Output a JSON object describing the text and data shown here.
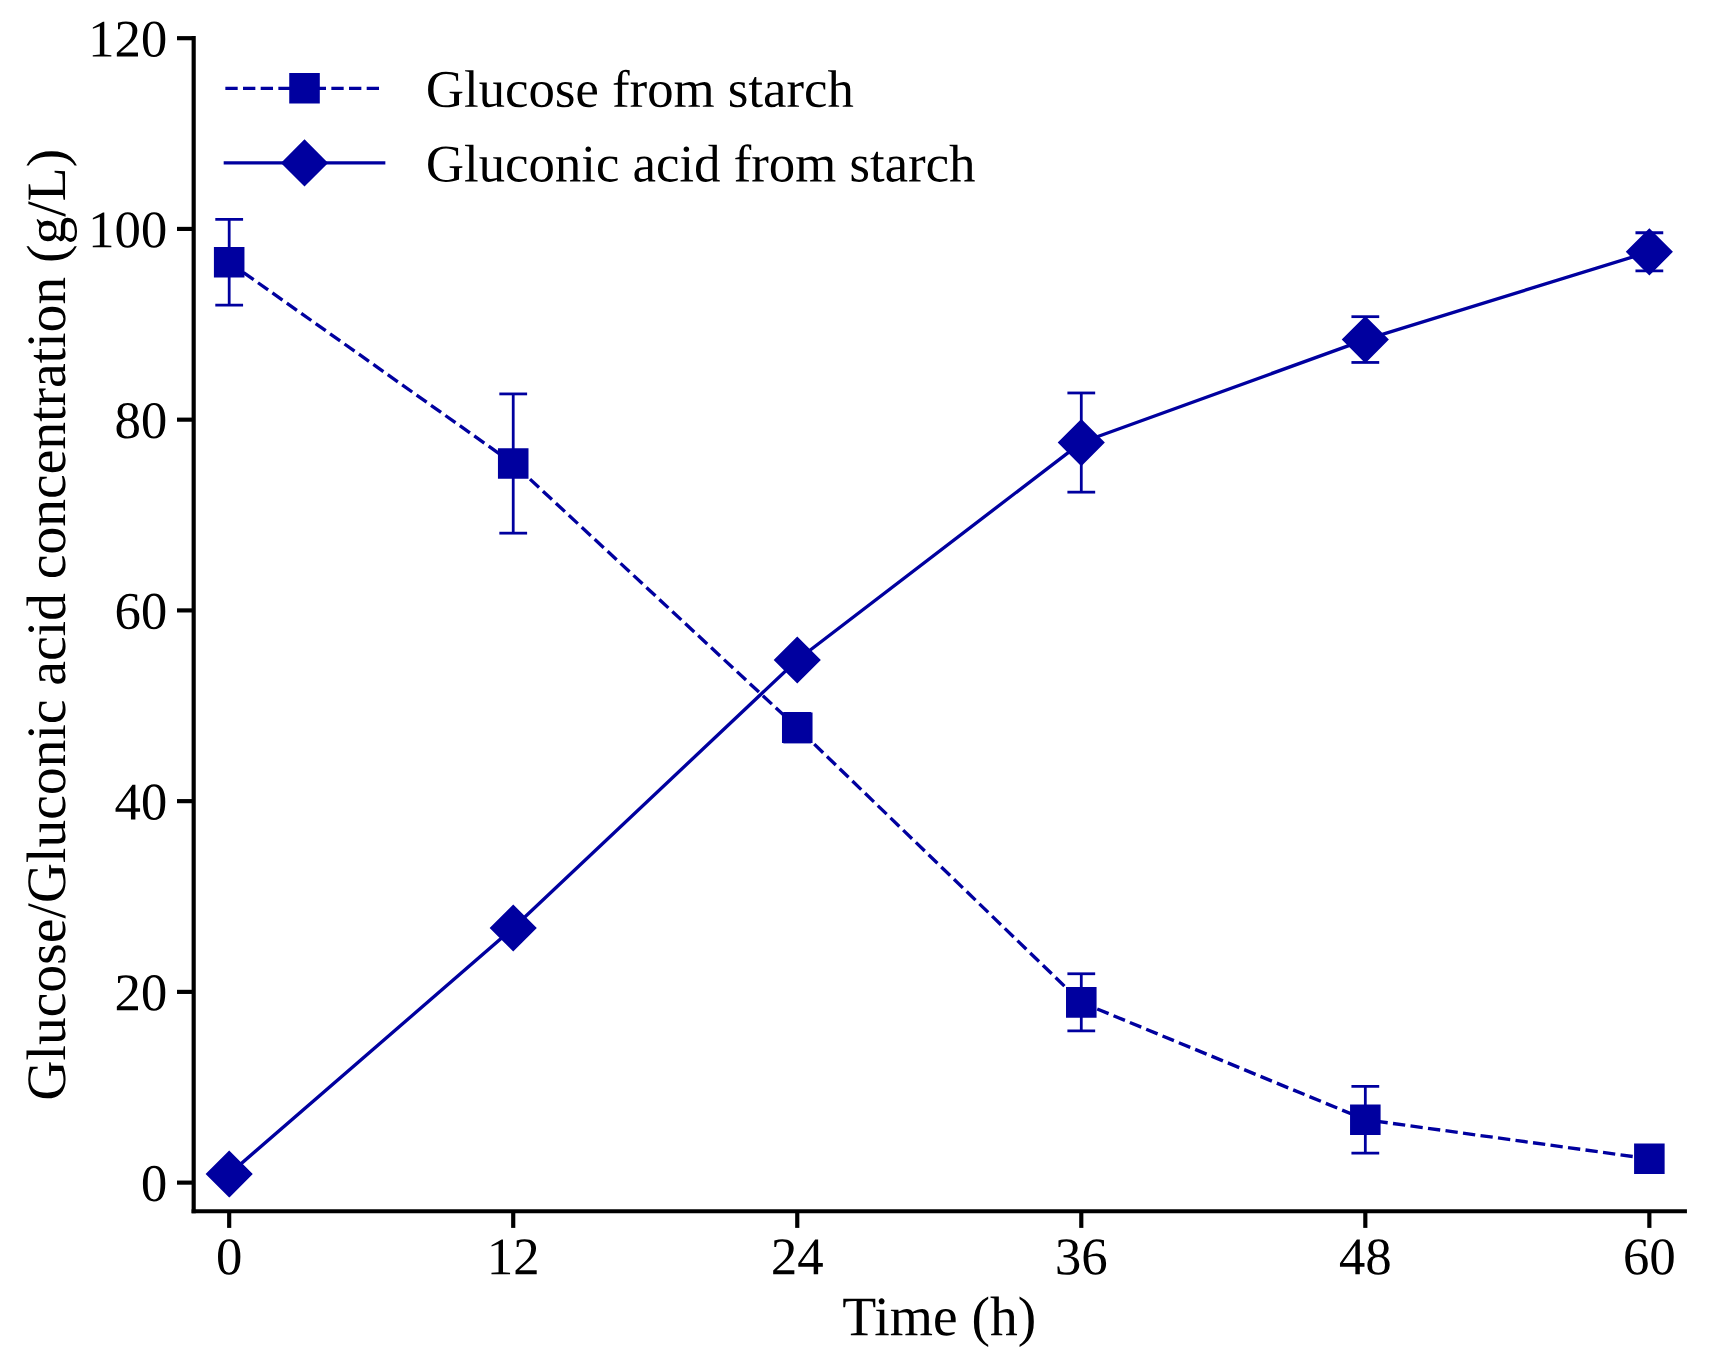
{
  "chart_data": {
    "type": "line",
    "xlabel": "Time (h)",
    "ylabel": "Glucose/Gluconic acid concentration (g/L)",
    "x": [
      0,
      12,
      24,
      36,
      48,
      60
    ],
    "series": [
      {
        "name": "Glucose from starch",
        "color": "#00009f",
        "marker": "square",
        "line_style": "dashed",
        "values": [
          96.5,
          75.4,
          47.7,
          18.9,
          6.6,
          2.5
        ],
        "errors": [
          4.5,
          7.3,
          1.5,
          3.0,
          3.5,
          null
        ]
      },
      {
        "name": "Gluconic acid from starch",
        "color": "#00009f",
        "marker": "diamond",
        "line_style": "solid",
        "values": [
          0.9,
          26.7,
          54.8,
          77.6,
          88.4,
          97.6
        ],
        "errors": [
          null,
          null,
          null,
          5.2,
          2.4,
          2.0
        ]
      }
    ],
    "xlim": [
      -1.5,
      61.5
    ],
    "xticks": [
      0,
      12,
      24,
      36,
      48,
      60
    ],
    "ylim": [
      -3,
      120
    ],
    "yticks": [
      0,
      20,
      40,
      60,
      80,
      100,
      120
    ],
    "grid": false,
    "legend": "top left"
  }
}
